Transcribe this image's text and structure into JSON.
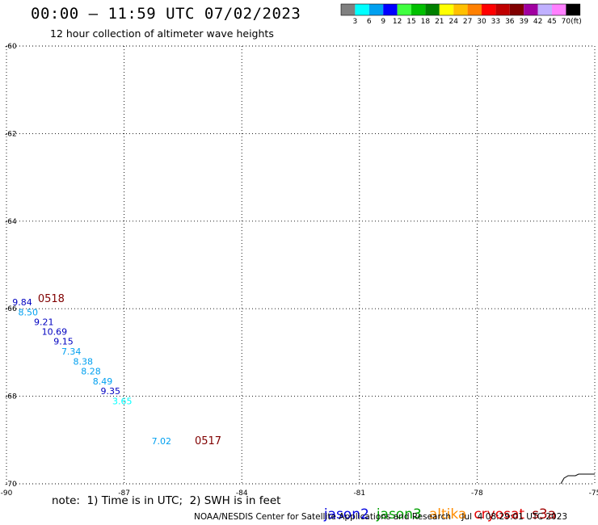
{
  "header": {
    "title": "00:00 – 11:59 UTC 07/02/2023",
    "subtitle": "12 hour collection of altimeter wave heights"
  },
  "color_scale": {
    "labels": [
      "3",
      "6",
      "9",
      "12",
      "15",
      "18",
      "21",
      "24",
      "27",
      "30",
      "33",
      "36",
      "39",
      "42",
      "45",
      "70"
    ],
    "unit": "(ft)",
    "colors": [
      "#808080",
      "#00ffff",
      "#00a0f0",
      "#0000ff",
      "#40ff40",
      "#00c000",
      "#008000",
      "#ffff00",
      "#ffc000",
      "#ff8000",
      "#ff0000",
      "#c00000",
      "#800000",
      "#a000a0",
      "#c0b0ff",
      "#ff80ff",
      "#000000"
    ]
  },
  "axes": {
    "lon_labels": [
      "-90",
      "-87",
      "-84",
      "-81",
      "-78",
      "-75"
    ],
    "lon_values": [
      -90,
      -87,
      -84,
      -81,
      -78,
      -75
    ],
    "lat_labels": [
      "-60",
      "-62",
      "-64",
      "-66",
      "-68",
      "-70"
    ],
    "lat_values": [
      -60,
      -62,
      -64,
      -66,
      -68,
      -70
    ]
  },
  "observations": [
    {
      "label": "9.84",
      "color": "#0000c0",
      "lon": -89.85,
      "lat": -65.92
    },
    {
      "label": "8.50",
      "color": "#00a0f0",
      "lon": -89.7,
      "lat": -66.15
    },
    {
      "label": "9.21",
      "color": "#0000c0",
      "lon": -89.3,
      "lat": -66.37
    },
    {
      "label": "10.69",
      "color": "#0000c0",
      "lon": -89.1,
      "lat": -66.6
    },
    {
      "label": "9.15",
      "color": "#0000c0",
      "lon": -88.8,
      "lat": -66.82
    },
    {
      "label": "7.34",
      "color": "#00a0f0",
      "lon": -88.6,
      "lat": -67.05
    },
    {
      "label": "8.38",
      "color": "#00a0f0",
      "lon": -88.3,
      "lat": -67.28
    },
    {
      "label": "8.28",
      "color": "#00a0f0",
      "lon": -88.1,
      "lat": -67.5
    },
    {
      "label": "8.49",
      "color": "#00a0f0",
      "lon": -87.8,
      "lat": -67.73
    },
    {
      "label": "9.35",
      "color": "#0000c0",
      "lon": -87.6,
      "lat": -67.95
    },
    {
      "label": "3.65",
      "color": "#00ffff",
      "lon": -87.3,
      "lat": -68.18
    },
    {
      "label": "7.02",
      "color": "#00a0f0",
      "lon": -86.3,
      "lat": -69.1
    }
  ],
  "pass_times": [
    {
      "label": "0518",
      "color": "#800000",
      "lon": -89.2,
      "lat": -65.85
    },
    {
      "label": "0517",
      "color": "#800000",
      "lon": -85.2,
      "lat": -69.1
    }
  ],
  "footer": {
    "note": "note:  1) Time is in UTC;  2) SWH is in feet",
    "satellites": [
      {
        "name": "jason2",
        "color": "#0000e0"
      },
      {
        "name": "jason3",
        "color": "#00a000"
      },
      {
        "name": "altika",
        "color": "#ff8c00"
      },
      {
        "name": "cryosat",
        "color": "#e00000"
      },
      {
        "name": "s3a",
        "color": "#a00000"
      }
    ],
    "credit": "NOAA/NESDIS Center for Satellite Applications and Research    Jul  4 08:29:01 UTC 2023"
  }
}
